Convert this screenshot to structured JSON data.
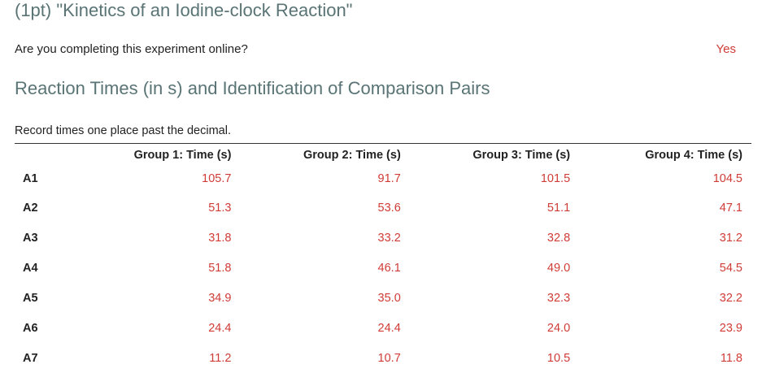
{
  "header": {
    "title": "(1pt) \"Kinetics of an Iodine-clock Reaction\""
  },
  "question": {
    "text": "Are you completing this experiment online?",
    "answer": "Yes"
  },
  "section": {
    "title": "Reaction Times (in s) and Identification of Comparison Pairs",
    "instruction": "Record times one place past the decimal."
  },
  "table": {
    "columns": [
      "Group 1: Time (s)",
      "Group 2: Time (s)",
      "Group 3: Time (s)",
      "Group 4: Time (s)"
    ],
    "rows": [
      {
        "label": "A1",
        "values": [
          "105.7",
          "91.7",
          "101.5",
          "104.5"
        ]
      },
      {
        "label": "A2",
        "values": [
          "51.3",
          "53.6",
          "51.1",
          "47.1"
        ]
      },
      {
        "label": "A3",
        "values": [
          "31.8",
          "33.2",
          "32.8",
          "31.2"
        ]
      },
      {
        "label": "A4",
        "values": [
          "51.8",
          "46.1",
          "49.0",
          "54.5"
        ]
      },
      {
        "label": "A5",
        "values": [
          "34.9",
          "35.0",
          "32.3",
          "32.2"
        ]
      },
      {
        "label": "A6",
        "values": [
          "24.4",
          "24.4",
          "24.0",
          "23.9"
        ]
      },
      {
        "label": "A7",
        "values": [
          "11.2",
          "10.7",
          "10.5",
          "11.8"
        ]
      }
    ]
  },
  "colors": {
    "heading": "#5a7475",
    "value": "#d03b36",
    "text": "#222222"
  }
}
